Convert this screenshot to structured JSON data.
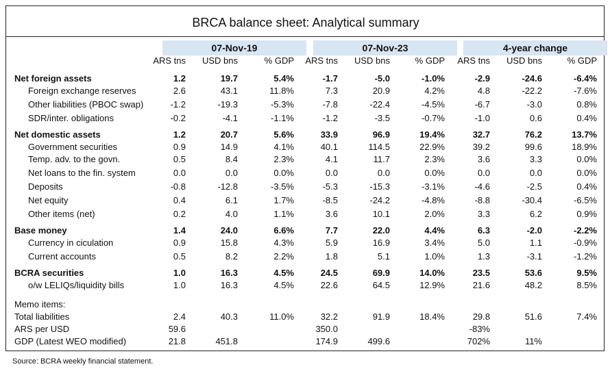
{
  "title": "BRCA balance sheet: Analytical summary",
  "groups": [
    "07-Nov-19",
    "07-Nov-23",
    "4-year change"
  ],
  "subheaders": [
    "ARS tns",
    "USD bns",
    "% GDP"
  ],
  "rows": [
    {
      "label": "Net foreign assets",
      "bold": true,
      "values": [
        "1.2",
        "19.7",
        "5.4%",
        "-1.7",
        "-5.0",
        "-1.0%",
        "-2.9",
        "-24.6",
        "-6.4%"
      ]
    },
    {
      "label": "Foreign exchange reserves",
      "values": [
        "2.6",
        "43.1",
        "11.8%",
        "7.3",
        "20.9",
        "4.2%",
        "4.8",
        "-22.2",
        "-7.6%"
      ]
    },
    {
      "label": "Other liabilities (PBOC swap)",
      "values": [
        "-1.2",
        "-19.3",
        "-5.3%",
        "-7.8",
        "-22.4",
        "-4.5%",
        "-6.7",
        "-3.0",
        "0.8%"
      ]
    },
    {
      "label": "SDR/inter. obligations",
      "values": [
        "-0.2",
        "-4.1",
        "-1.1%",
        "-1.2",
        "-3.5",
        "-0.7%",
        "-1.0",
        "0.6",
        "0.4%"
      ]
    },
    {
      "label": "Net domestic assets",
      "bold": true,
      "values": [
        "1.2",
        "20.7",
        "5.6%",
        "33.9",
        "96.9",
        "19.4%",
        "32.7",
        "76.2",
        "13.7%"
      ]
    },
    {
      "label": "Government securities",
      "values": [
        "0.9",
        "14.9",
        "4.1%",
        "40.1",
        "114.5",
        "22.9%",
        "39.2",
        "99.6",
        "18.9%"
      ]
    },
    {
      "label": "Temp. adv. to the govn.",
      "values": [
        "0.5",
        "8.4",
        "2.3%",
        "4.1",
        "11.7",
        "2.3%",
        "3.6",
        "3.3",
        "0.0%"
      ]
    },
    {
      "label": "Net loans to the fin. system",
      "values": [
        "0.0",
        "0.0",
        "0.0%",
        "0.0",
        "0.0",
        "0.0%",
        "0.0",
        "0.0",
        "0.0%"
      ]
    },
    {
      "label": "Deposits",
      "values": [
        "-0.8",
        "-12.8",
        "-3.5%",
        "-5.3",
        "-15.3",
        "-3.1%",
        "-4.6",
        "-2.5",
        "0.4%"
      ]
    },
    {
      "label": "Net equity",
      "values": [
        "0.4",
        "6.1",
        "1.7%",
        "-8.5",
        "-24.2",
        "-4.8%",
        "-8.8",
        "-30.4",
        "-6.5%"
      ]
    },
    {
      "label": "Other items (net)",
      "values": [
        "0.2",
        "4.0",
        "1.1%",
        "3.6",
        "10.1",
        "2.0%",
        "3.3",
        "6.2",
        "0.9%"
      ]
    },
    {
      "label": "Base money",
      "bold": true,
      "values": [
        "1.4",
        "24.0",
        "6.6%",
        "7.7",
        "22.0",
        "4.4%",
        "6.3",
        "-2.0",
        "-2.2%"
      ]
    },
    {
      "label": "Currency in ciculation",
      "values": [
        "0.9",
        "15.8",
        "4.3%",
        "5.9",
        "16.9",
        "3.4%",
        "5.0",
        "1.1",
        "-0.9%"
      ]
    },
    {
      "label": "Current accounts",
      "values": [
        "0.5",
        "8.2",
        "2.2%",
        "1.8",
        "5.1",
        "1.0%",
        "1.3",
        "-3.1",
        "-1.2%"
      ]
    },
    {
      "label": "BCRA securities",
      "bold": true,
      "values": [
        "1.0",
        "16.3",
        "4.5%",
        "24.5",
        "69.9",
        "14.0%",
        "23.5",
        "53.6",
        "9.5%"
      ]
    },
    {
      "label": "o/w LELIQs/liquidity bills",
      "values": [
        "1.0",
        "16.3",
        "4.5%",
        "22.6",
        "64.5",
        "12.9%",
        "21.6",
        "48.2",
        "8.5%"
      ]
    },
    {
      "label": "Memo items:",
      "values": [
        "",
        "",
        "",
        "",
        "",
        "",
        "",
        "",
        ""
      ]
    },
    {
      "label": "Total liabilities",
      "values": [
        "2.4",
        "40.3",
        "11.0%",
        "32.2",
        "91.9",
        "18.4%",
        "29.8",
        "51.6",
        "7.4%"
      ]
    },
    {
      "label": "ARS per USD",
      "values": [
        "59.6",
        "",
        "",
        "350.0",
        "",
        "",
        "-83%",
        "",
        ""
      ]
    },
    {
      "label": "GDP (Latest WEO modified)",
      "values": [
        "21.8",
        "451.8",
        "",
        "174.9",
        "499.6",
        "",
        "702%",
        "11%",
        ""
      ]
    }
  ],
  "source": "Source: BCRA weekly financial statement."
}
